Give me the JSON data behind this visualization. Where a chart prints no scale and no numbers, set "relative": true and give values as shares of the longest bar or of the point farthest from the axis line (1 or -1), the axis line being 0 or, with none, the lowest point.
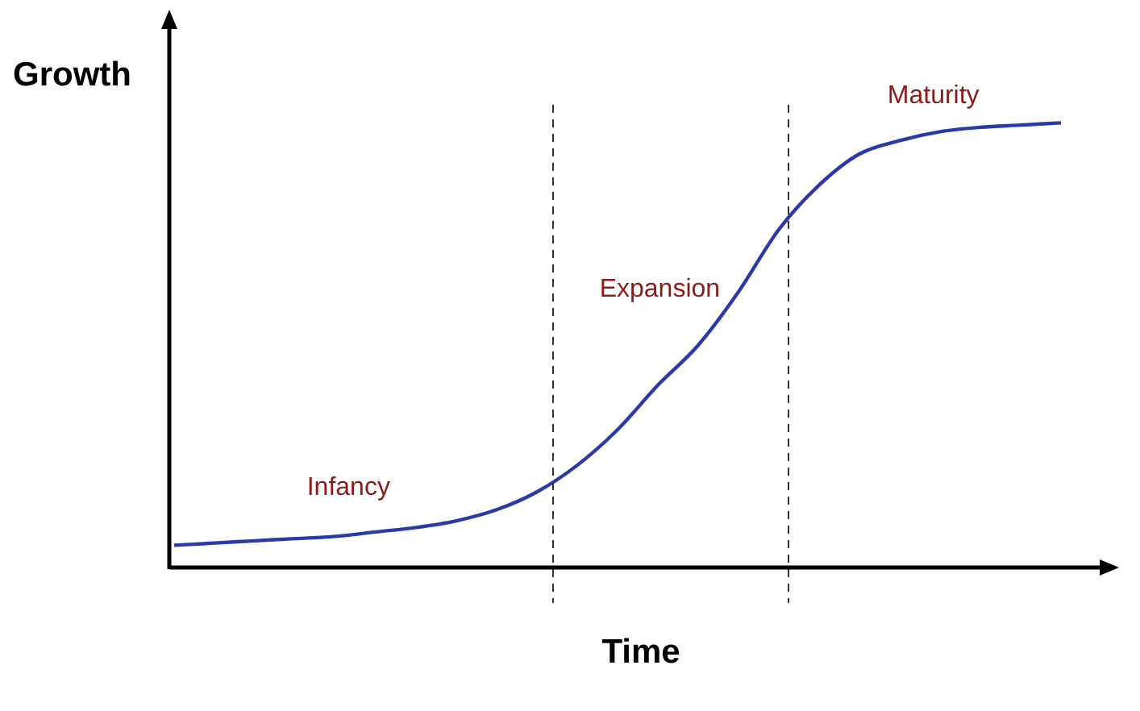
{
  "chart_data": {
    "type": "line",
    "relative": true,
    "ylabel": "Growth",
    "xlabel": "Time",
    "color": "#2a3aa8",
    "legend": false,
    "marker": "none",
    "categories": [
      null,
      null,
      null,
      null,
      null,
      null,
      null,
      null,
      null,
      null,
      null,
      null,
      null,
      null,
      null,
      null,
      null,
      null,
      null,
      null,
      null,
      null,
      null
    ],
    "values": [
      0.05,
      0.055,
      0.06,
      0.065,
      0.07,
      0.08,
      0.09,
      0.105,
      0.13,
      0.17,
      0.23,
      0.31,
      0.41,
      0.5,
      0.62,
      0.76,
      0.86,
      0.93,
      0.96,
      0.98,
      0.99,
      0.995,
      1
    ],
    "annotations": [
      "Infancy",
      "Expansion",
      "Maturity"
    ]
  }
}
